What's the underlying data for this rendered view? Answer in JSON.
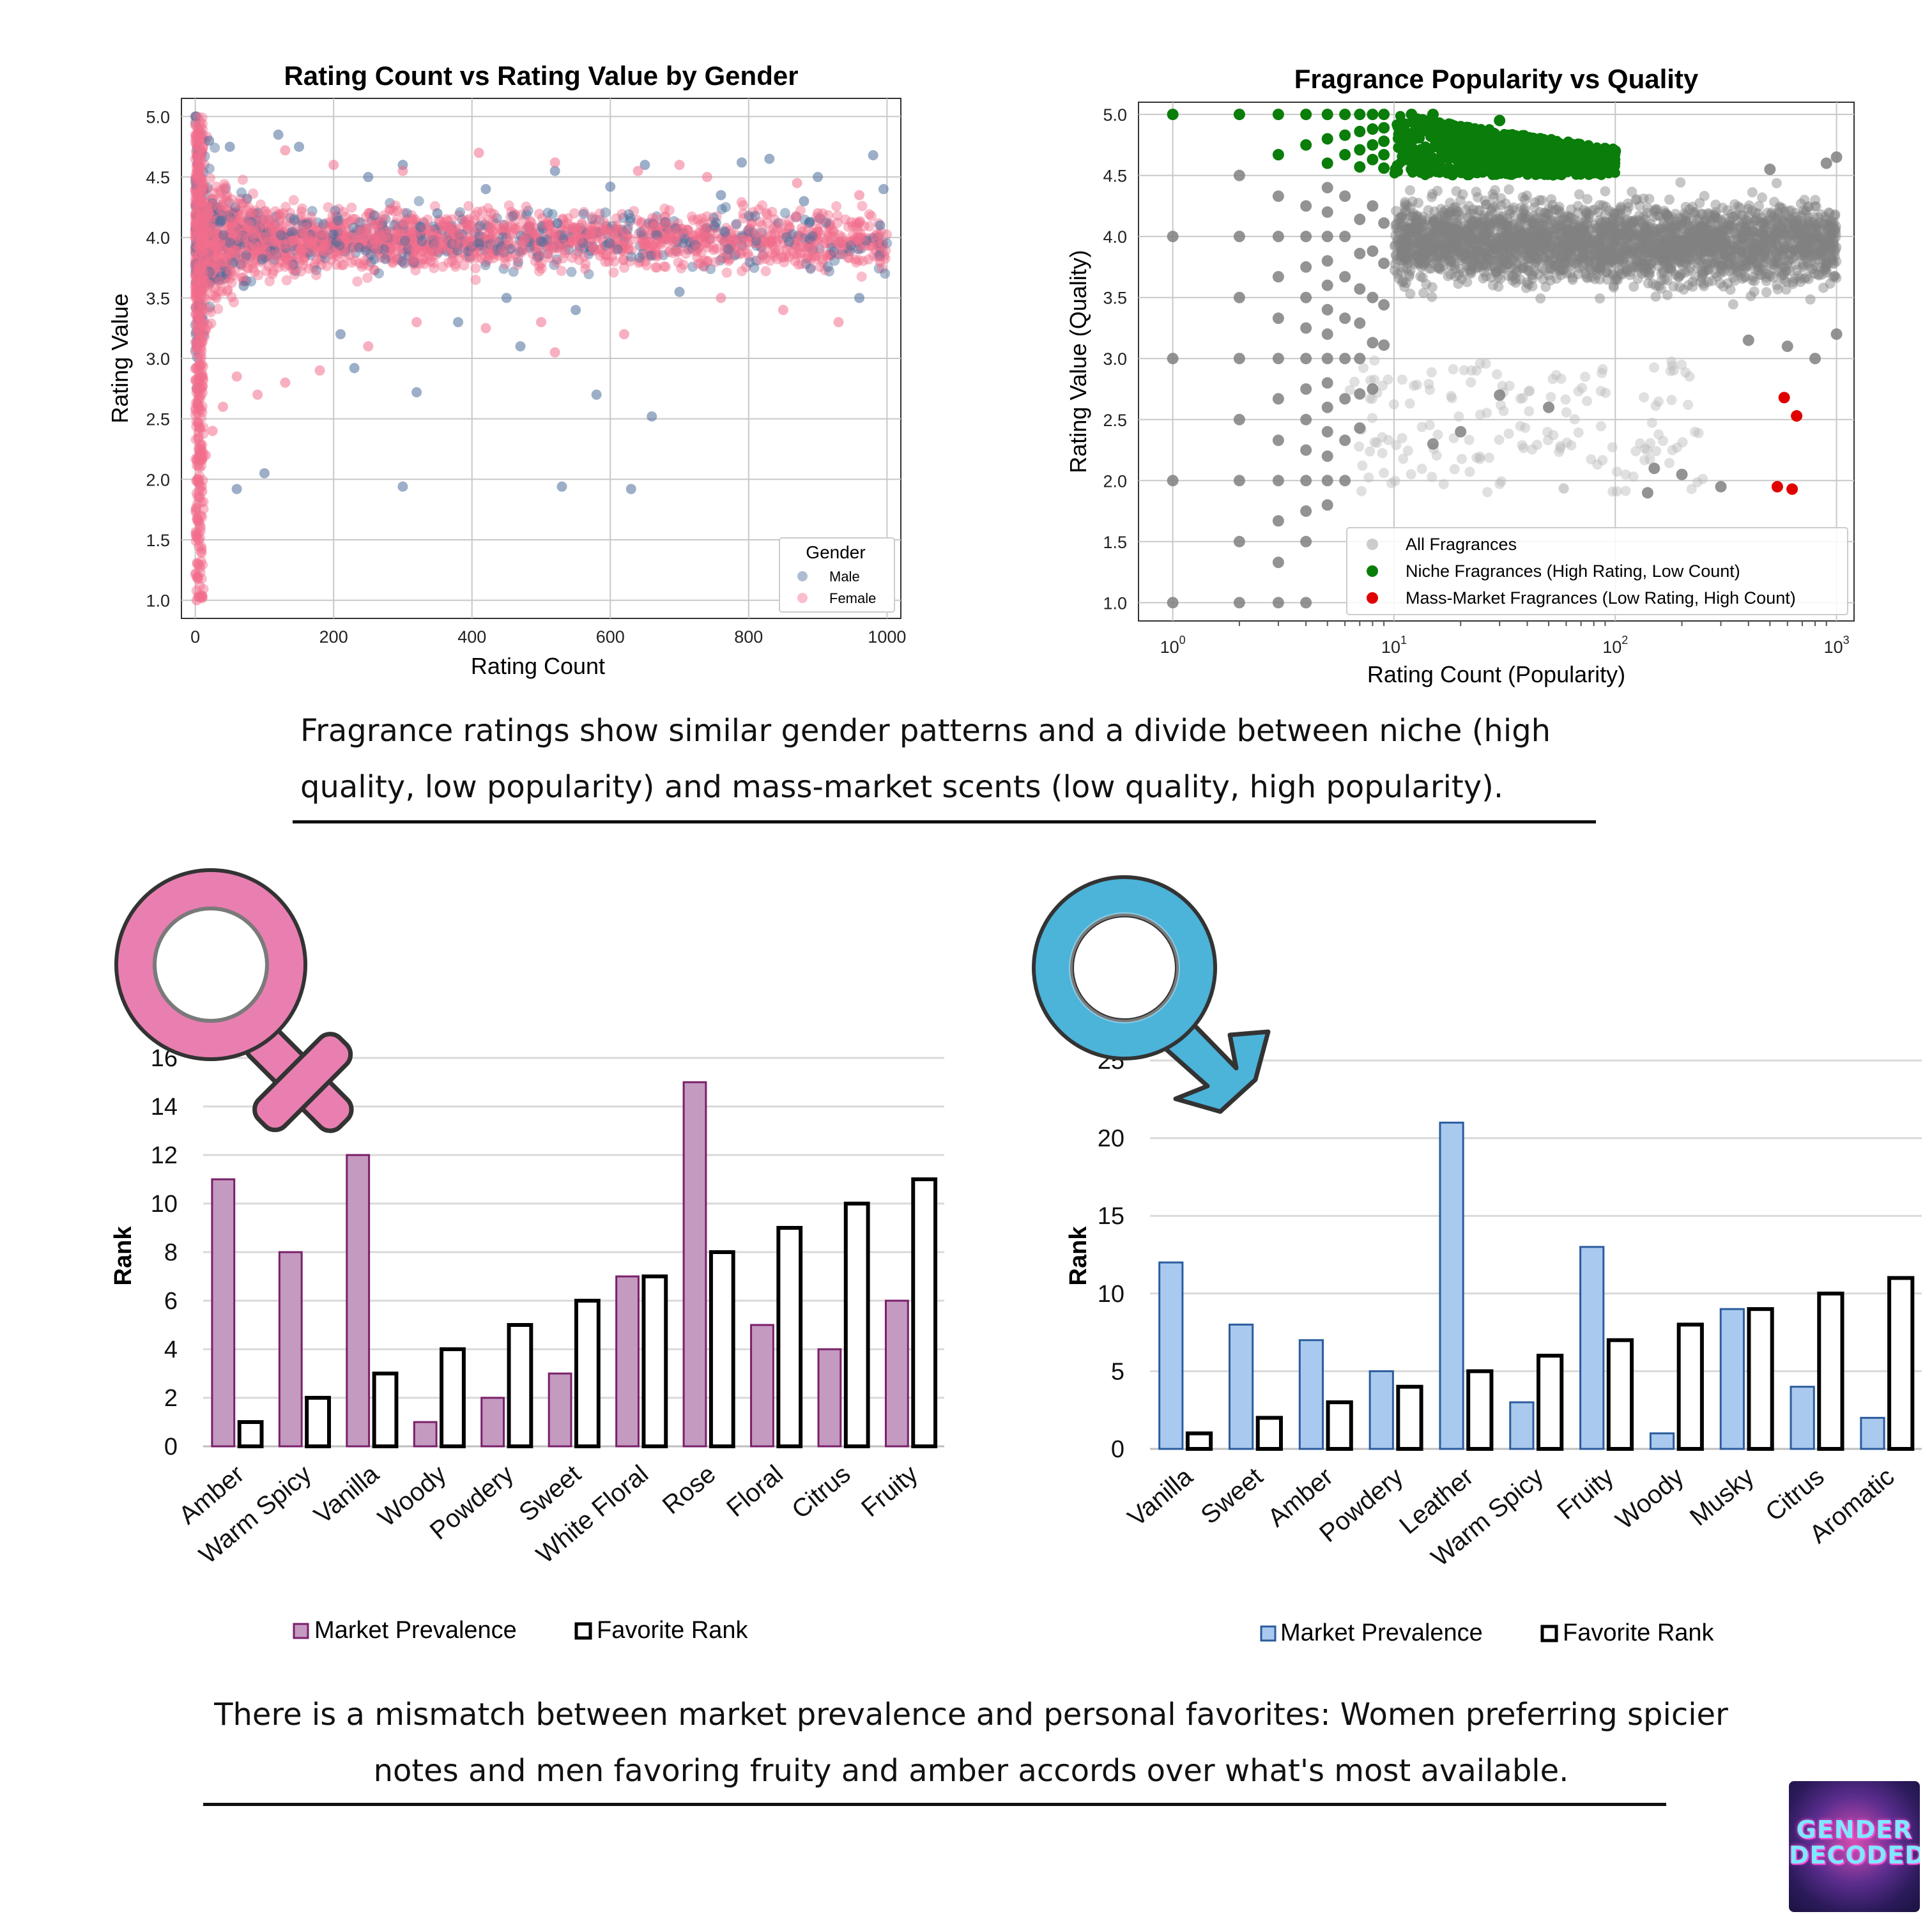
{
  "captions": {
    "top": "Fragrance ratings show similar gender patterns and a divide between niche (high quality, low popularity) and mass-market scents (low quality, high popularity).",
    "bottom": "There is a mismatch between market prevalence and personal favorites: Women preferring spicier notes and men favoring fruity and amber accords over what's most available."
  },
  "logo": {
    "line1": "GENDER",
    "line2": "DECODED"
  },
  "symbols": {
    "female": "female-symbol-icon",
    "male": "male-symbol-icon",
    "female_color": "#e87fb0",
    "male_color": "#4cb3d9"
  },
  "chart_data": [
    {
      "type": "scatter",
      "title": "Rating Count vs Rating Value by Gender",
      "xlabel": "Rating Count",
      "ylabel": "Rating Value",
      "xlim": [
        -20,
        1020
      ],
      "ylim": [
        0.85,
        5.15
      ],
      "xticks": [
        0,
        200,
        400,
        600,
        800,
        1000
      ],
      "yticks": [
        1.0,
        1.5,
        2.0,
        2.5,
        3.0,
        3.5,
        4.0,
        4.5,
        5.0
      ],
      "grid": true,
      "legend": {
        "title": "Gender",
        "position": "lower-right",
        "entries": [
          "Male",
          "Female"
        ]
      },
      "series": [
        {
          "name": "Male",
          "color": "#4a6c9b",
          "points": [
            [
              120,
              4.85
            ],
            [
              150,
              4.75
            ],
            [
              300,
              4.6
            ],
            [
              520,
              4.55
            ],
            [
              650,
              4.6
            ],
            [
              790,
              4.62
            ],
            [
              830,
              4.65
            ],
            [
              900,
              4.5
            ],
            [
              980,
              4.68
            ],
            [
              995,
              4.4
            ],
            [
              990,
              4.1
            ],
            [
              960,
              3.5
            ],
            [
              380,
              3.3
            ],
            [
              470,
              3.1
            ],
            [
              580,
              2.7
            ],
            [
              660,
              2.52
            ],
            [
              550,
              3.4
            ],
            [
              210,
              3.2
            ],
            [
              230,
              2.92
            ],
            [
              100,
              2.05
            ],
            [
              60,
              1.92
            ],
            [
              300,
              1.94
            ],
            [
              530,
              1.94
            ],
            [
              630,
              1.92
            ],
            [
              320,
              2.72
            ],
            [
              70,
              3.6
            ],
            [
              450,
              3.5
            ],
            [
              700,
              3.55
            ],
            [
              250,
              4.5
            ],
            [
              420,
              4.4
            ],
            [
              600,
              4.42
            ],
            [
              760,
              4.35
            ],
            [
              880,
              4.3
            ],
            [
              350,
              4.2
            ],
            [
              50,
              4.75
            ],
            [
              20,
              4.8
            ]
          ]
        },
        {
          "name": "Female",
          "color": "#f26d8c",
          "points": [
            [
              130,
              4.72
            ],
            [
              410,
              4.7
            ],
            [
              520,
              4.62
            ],
            [
              640,
              4.55
            ],
            [
              740,
              4.5
            ],
            [
              870,
              4.45
            ],
            [
              960,
              4.35
            ],
            [
              990,
              3.8
            ],
            [
              930,
              3.3
            ],
            [
              850,
              3.4
            ],
            [
              760,
              3.5
            ],
            [
              620,
              3.2
            ],
            [
              500,
              3.3
            ],
            [
              420,
              3.25
            ],
            [
              320,
              3.3
            ],
            [
              250,
              3.1
            ],
            [
              180,
              2.9
            ],
            [
              130,
              2.8
            ],
            [
              90,
              2.7
            ],
            [
              60,
              2.85
            ],
            [
              40,
              2.6
            ],
            [
              25,
              2.4
            ],
            [
              15,
              2.2
            ],
            [
              10,
              1.9
            ],
            [
              8,
              1.7
            ],
            [
              5,
              1.5
            ],
            [
              3,
              1.3
            ],
            [
              2,
              1.0
            ],
            [
              4,
              2.0
            ],
            [
              6,
              3.0
            ],
            [
              520,
              3.05
            ],
            [
              300,
              4.55
            ],
            [
              700,
              4.6
            ],
            [
              900,
              4.2
            ],
            [
              960,
              4.0
            ],
            [
              200,
              4.6
            ]
          ]
        }
      ]
    },
    {
      "type": "scatter",
      "title": "Fragrance Popularity vs Quality",
      "xlabel": "Rating Count (Popularity)",
      "ylabel": "Rating Value (Quality)",
      "xscale": "log",
      "xlim": [
        0.7,
        1200
      ],
      "ylim": [
        0.85,
        5.1
      ],
      "xticks": [
        1,
        10,
        100,
        1000
      ],
      "xtick_labels": [
        "10^0",
        "10^1",
        "10^2",
        "10^3"
      ],
      "yticks": [
        1.0,
        1.5,
        2.0,
        2.5,
        3.0,
        3.5,
        4.0,
        4.5,
        5.0
      ],
      "grid": true,
      "legend": {
        "position": "lower-right",
        "entries": [
          "All Fragrances",
          "Niche Fragrances (High Rating, Low Count)",
          "Mass-Market Fragrances (Low Rating, High Count)"
        ]
      },
      "series": [
        {
          "name": "All Fragrances",
          "color": "#808080",
          "points": [
            [
              2,
              4.5
            ],
            [
              2,
              4.0
            ],
            [
              2,
              3.5
            ],
            [
              2,
              3.0
            ],
            [
              2,
              2.5
            ],
            [
              2,
              2.0
            ],
            [
              2,
              1.5
            ],
            [
              2,
              1.0
            ],
            [
              1,
              4.0
            ],
            [
              1,
              3.0
            ],
            [
              1,
              2.0
            ],
            [
              1,
              1.0
            ],
            [
              3,
              4.33
            ],
            [
              3,
              4.0
            ],
            [
              3,
              3.67
            ],
            [
              3,
              3.33
            ],
            [
              3,
              3.0
            ],
            [
              3,
              2.67
            ],
            [
              3,
              2.33
            ],
            [
              3,
              2.0
            ],
            [
              3,
              1.67
            ],
            [
              3,
              1.33
            ],
            [
              3,
              1.0
            ],
            [
              4,
              4.25
            ],
            [
              4,
              4.0
            ],
            [
              4,
              3.75
            ],
            [
              4,
              3.5
            ],
            [
              4,
              3.25
            ],
            [
              4,
              3.0
            ],
            [
              4,
              2.75
            ],
            [
              4,
              2.5
            ],
            [
              4,
              2.25
            ],
            [
              4,
              2.0
            ],
            [
              4,
              1.75
            ],
            [
              4,
              1.5
            ],
            [
              4,
              1.0
            ],
            [
              5,
              4.4
            ],
            [
              5,
              4.2
            ],
            [
              5,
              4.0
            ],
            [
              5,
              3.8
            ],
            [
              5,
              3.6
            ],
            [
              5,
              3.4
            ],
            [
              5,
              3.2
            ],
            [
              5,
              3.0
            ],
            [
              5,
              2.8
            ],
            [
              5,
              2.6
            ],
            [
              5,
              2.4
            ],
            [
              5,
              2.2
            ],
            [
              5,
              2.0
            ],
            [
              5,
              1.8
            ],
            [
              6,
              4.33
            ],
            [
              6,
              4.0
            ],
            [
              6,
              3.67
            ],
            [
              6,
              3.33
            ],
            [
              6,
              3.0
            ],
            [
              6,
              2.67
            ],
            [
              6,
              2.33
            ],
            [
              6,
              2.0
            ],
            [
              7,
              4.14
            ],
            [
              7,
              3.86
            ],
            [
              7,
              3.57
            ],
            [
              7,
              3.29
            ],
            [
              7,
              3.0
            ],
            [
              7,
              2.71
            ],
            [
              7,
              2.43
            ],
            [
              8,
              4.25
            ],
            [
              8,
              3.88
            ],
            [
              8,
              3.5
            ],
            [
              8,
              3.13
            ],
            [
              8,
              2.75
            ],
            [
              9,
              4.11
            ],
            [
              9,
              3.78
            ],
            [
              9,
              3.44
            ],
            [
              9,
              3.11
            ],
            [
              150,
              2.1
            ],
            [
              140,
              1.9
            ],
            [
              300,
              1.95
            ],
            [
              200,
              2.05
            ],
            [
              1000,
              3.2
            ],
            [
              800,
              3.0
            ],
            [
              600,
              3.1
            ],
            [
              400,
              3.15
            ],
            [
              50,
              2.6
            ],
            [
              30,
              2.7
            ],
            [
              1000,
              4.65
            ],
            [
              900,
              4.6
            ],
            [
              500,
              4.55
            ],
            [
              20,
              2.4
            ],
            [
              15,
              2.3
            ]
          ]
        },
        {
          "name": "Niche Fragrances (High Rating, Low Count)",
          "color": "#0a7d0a",
          "points": [
            [
              1,
              5.0
            ],
            [
              2,
              5.0
            ],
            [
              3,
              5.0
            ],
            [
              3,
              4.67
            ],
            [
              4,
              5.0
            ],
            [
              4,
              4.75
            ],
            [
              5,
              5.0
            ],
            [
              5,
              4.8
            ],
            [
              5,
              4.6
            ],
            [
              6,
              5.0
            ],
            [
              6,
              4.83
            ],
            [
              6,
              4.67
            ],
            [
              7,
              5.0
            ],
            [
              7,
              4.86
            ],
            [
              7,
              4.71
            ],
            [
              7,
              4.57
            ],
            [
              8,
              5.0
            ],
            [
              8,
              4.88
            ],
            [
              8,
              4.75
            ],
            [
              8,
              4.63
            ],
            [
              9,
              5.0
            ],
            [
              9,
              4.89
            ],
            [
              9,
              4.78
            ],
            [
              9,
              4.67
            ],
            [
              9,
              4.56
            ],
            [
              12,
              5.0
            ],
            [
              15,
              5.0
            ],
            [
              30,
              4.95
            ],
            [
              40,
              4.8
            ],
            [
              60,
              4.75
            ],
            [
              90,
              4.72
            ],
            [
              100,
              4.7
            ],
            [
              20,
              4.9
            ],
            [
              25,
              4.85
            ],
            [
              50,
              4.78
            ],
            [
              70,
              4.73
            ]
          ]
        },
        {
          "name": "Mass-Market Fragrances (Low Rating, High Count)",
          "color": "#e00000",
          "points": [
            [
              580,
              2.68
            ],
            [
              660,
              2.53
            ],
            [
              540,
              1.95
            ],
            [
              630,
              1.93
            ]
          ]
        }
      ]
    },
    {
      "type": "bar",
      "ylabel": "Rank",
      "ylim": [
        0,
        16
      ],
      "yticks": [
        0,
        2,
        4,
        6,
        8,
        10,
        12,
        14,
        16
      ],
      "grid": true,
      "legend": {
        "position": "bottom",
        "entries": [
          "Market Prevalence",
          "Favorite Rank"
        ]
      },
      "categories": [
        "Amber",
        "Warm Spicy",
        "Vanilla",
        "Woody",
        "Powdery",
        "Sweet",
        "White Floral",
        "Rose",
        "Floral",
        "Citrus",
        "Fruity"
      ],
      "series": [
        {
          "name": "Market Prevalence",
          "color": "#c49ac0",
          "values": [
            11,
            8,
            12,
            1,
            2,
            3,
            7,
            15,
            5,
            4,
            6
          ]
        },
        {
          "name": "Favorite Rank",
          "color": "#ffffff",
          "values": [
            1,
            2,
            3,
            4,
            5,
            6,
            7,
            8,
            9,
            10,
            11
          ]
        }
      ]
    },
    {
      "type": "bar",
      "ylabel": "Rank",
      "ylim": [
        0,
        25
      ],
      "yticks": [
        0,
        5,
        10,
        15,
        20,
        25
      ],
      "grid": true,
      "legend": {
        "position": "bottom",
        "entries": [
          "Market Prevalence",
          "Favorite Rank"
        ]
      },
      "categories": [
        "Vanilla",
        "Sweet",
        "Amber",
        "Powdery",
        "Leather",
        "Warm Spicy",
        "Fruity",
        "Woody",
        "Musky",
        "Citrus",
        "Aromatic"
      ],
      "series": [
        {
          "name": "Market Prevalence",
          "color": "#a9c9ee",
          "values": [
            12,
            8,
            7,
            5,
            21,
            3,
            13,
            1,
            9,
            4,
            2
          ]
        },
        {
          "name": "Favorite Rank",
          "color": "#ffffff",
          "values": [
            1,
            2,
            3,
            4,
            5,
            6,
            7,
            8,
            9,
            10,
            11
          ]
        }
      ]
    }
  ]
}
